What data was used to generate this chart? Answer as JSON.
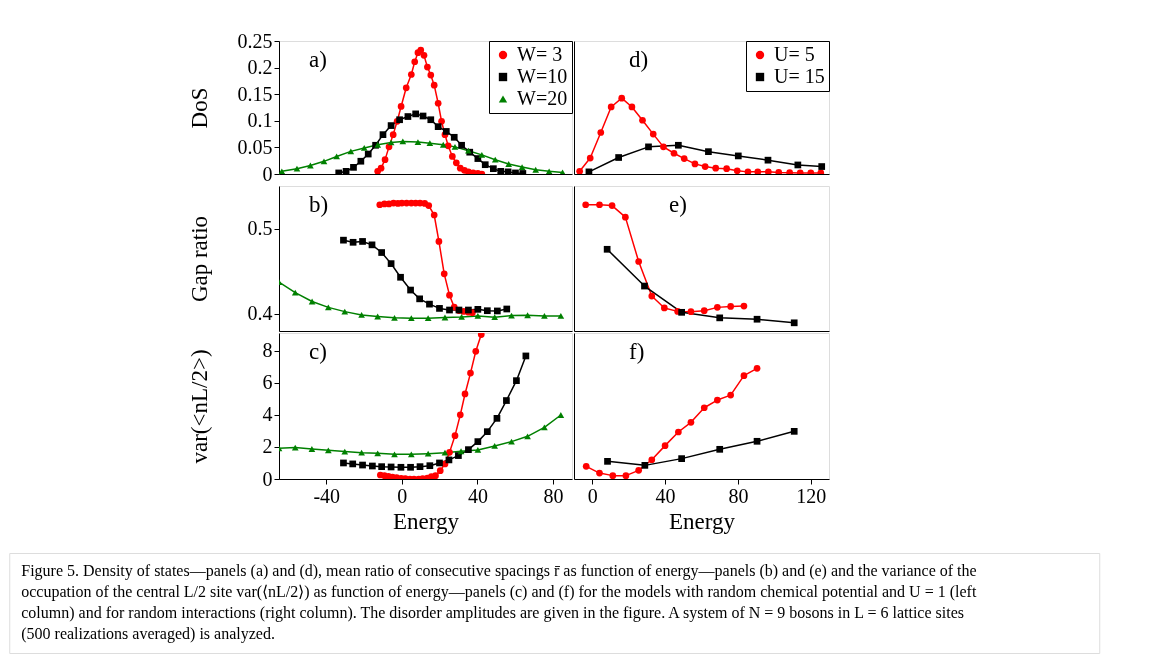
{
  "chart_data": [
    {
      "type": "line",
      "ylabel": "DoS",
      "annotations": [
        "a)"
      ],
      "xlim": [
        -65,
        90
      ],
      "ylim": [
        0,
        0.25
      ],
      "xticks": [
        -40,
        0,
        40,
        80
      ],
      "yticks": [
        0,
        0.05,
        0.1,
        0.15,
        0.2,
        0.25
      ],
      "tick_labels": "y",
      "legend": "top right",
      "series": [
        {
          "name": "W= 3",
          "color": "#ff0000",
          "marker": "circle",
          "x": [
            -12.8,
            -11.0,
            -8.9,
            -6.8,
            -4.6,
            -2.5,
            -0.4,
            2.3,
            5.0,
            6.8,
            8.5,
            10.0,
            11.7,
            13.5,
            15.3,
            17.1,
            19.2,
            21.0,
            22.8,
            24.5,
            26.7,
            28.8,
            30.9,
            33.1,
            35.2,
            37.7,
            40.2,
            42.3
          ],
          "values": [
            0.005,
            0.011,
            0.027,
            0.051,
            0.074,
            0.099,
            0.127,
            0.162,
            0.187,
            0.211,
            0.228,
            0.233,
            0.223,
            0.201,
            0.186,
            0.167,
            0.133,
            0.099,
            0.074,
            0.053,
            0.033,
            0.021,
            0.011,
            0.007,
            0.004,
            0.002,
            0.001,
            0
          ]
        },
        {
          "name": "W=10",
          "color": "#000000",
          "marker": "square",
          "x": [
            -33.4,
            -29.5,
            -25.6,
            -21.7,
            -17.8,
            -13.9,
            -10.0,
            -5.7,
            -1.2,
            3.2,
            7.3,
            11.2,
            15.3,
            19.2,
            23.5,
            27.7,
            31.6,
            35.9,
            40.2,
            44.1,
            48.4,
            52.3,
            56.2,
            60.1,
            64.0
          ],
          "values": [
            0.002,
            0.005,
            0.0125,
            0.024,
            0.0375,
            0.054,
            0.074,
            0.091,
            0.102,
            0.108,
            0.113,
            0.109,
            0.102,
            0.089,
            0.08,
            0.069,
            0.054,
            0.041,
            0.029,
            0.0175,
            0.01,
            0.005,
            0.004,
            0.002,
            0.001
          ]
        },
        {
          "name": "W=20",
          "color": "#008000",
          "marker": "triangle",
          "x": [
            -63.5,
            -55.5,
            -48.4,
            -41.2,
            -34.5,
            -27.0,
            -19.9,
            -12.8,
            -5.7,
            0.5,
            8.5,
            14.8,
            21.9,
            28.1,
            35.2,
            42.3,
            49.4,
            56.5,
            63.6,
            70.8,
            77.9,
            85.0
          ],
          "values": [
            0.005,
            0.01,
            0.016,
            0.0238,
            0.033,
            0.0425,
            0.049,
            0.055,
            0.0594,
            0.0613,
            0.06,
            0.058,
            0.055,
            0.051,
            0.0438,
            0.036,
            0.0269,
            0.0188,
            0.0131,
            0.008,
            0.005,
            0.003
          ]
        }
      ]
    },
    {
      "type": "line",
      "ylabel": "Gap ratio",
      "annotations": [
        "b)"
      ],
      "xlim": [
        -65,
        90
      ],
      "ylim": [
        0.38,
        0.55
      ],
      "xticks": [
        -40,
        0,
        40,
        80
      ],
      "yticks": [
        0.4,
        0.5
      ],
      "tick_labels": "y",
      "series": [
        {
          "color": "#ff0000",
          "marker": "circle",
          "x": [
            -11.7,
            -9.2,
            -6.8,
            -4.4,
            -2.1,
            0,
            2.5,
            5.0,
            7.3,
            9.6,
            12.1,
            14.2,
            17.1,
            19.6,
            22.4,
            25.2,
            27.7,
            30.2,
            32.7,
            35.2,
            37.3
          ],
          "values": [
            0.528,
            0.529,
            0.529,
            0.53,
            0.5296,
            0.53,
            0.53,
            0.53,
            0.53,
            0.53,
            0.5296,
            0.527,
            0.516,
            0.485,
            0.447,
            0.422,
            0.408,
            0.404,
            0.403,
            0.402,
            0.4015
          ]
        },
        {
          "color": "#000000",
          "marker": "square",
          "x": [
            -30.9,
            -25.8,
            -20.8,
            -15.8,
            -10.7,
            -5.7,
            -0.7,
            4.6,
            9.4,
            14.6,
            19.9,
            25.2,
            30.2,
            35.2,
            40.2,
            45.2,
            50.5,
            55.5
          ],
          "values": [
            0.4865,
            0.484,
            0.485,
            0.481,
            0.472,
            0.459,
            0.443,
            0.428,
            0.4177,
            0.4115,
            0.4065,
            0.4046,
            0.4046,
            0.4046,
            0.4054,
            0.4038,
            0.4035,
            0.4058
          ]
        },
        {
          "color": "#008000",
          "marker": "triangle",
          "x": [
            -65,
            -56.4,
            -47.5,
            -38.9,
            -30.2,
            -21.3,
            -12.8,
            -3.9,
            5.0,
            13.9,
            22.8,
            31.6,
            40.2,
            49.1,
            58.0,
            66.5,
            75.4,
            84.1
          ],
          "values": [
            0.4373,
            0.425,
            0.4146,
            0.4077,
            0.4027,
            0.3988,
            0.397,
            0.3954,
            0.395,
            0.395,
            0.3958,
            0.3965,
            0.3977,
            0.3962,
            0.3981,
            0.3985,
            0.3977,
            0.3977
          ]
        }
      ]
    },
    {
      "type": "line",
      "xlabel": "Energy",
      "ylabel": "var(<nL/2>)",
      "annotations": [
        "c)"
      ],
      "xlim": [
        -65,
        90
      ],
      "ylim": [
        0,
        9.1
      ],
      "xticks": [
        -40,
        0,
        40,
        80
      ],
      "yticks": [
        0,
        2,
        4,
        6,
        8
      ],
      "series": [
        {
          "color": "#ff0000",
          "marker": "circle",
          "x": [
            -11.4,
            -9.2,
            -7.1,
            -5.0,
            -2.8,
            -0.4,
            1.8,
            4.3,
            6.4,
            8.9,
            11.0,
            13.5,
            15.6,
            17.8,
            20.3,
            22.8,
            25.2,
            28.1,
            30.9,
            33.4,
            36.3,
            39.1,
            42.0
          ],
          "values": [
            0.25,
            0.21,
            0.17,
            0.12,
            0.08,
            0.04,
            0.02,
            0,
            0,
            0,
            0.02,
            0.06,
            0.15,
            0.21,
            0.52,
            0.94,
            1.66,
            2.7,
            4.0,
            5.3,
            6.6,
            7.96,
            9.0
          ]
        },
        {
          "color": "#000000",
          "marker": "square",
          "x": [
            -30.9,
            -26.0,
            -20.8,
            -15.6,
            -10.7,
            -5.7,
            -0.5,
            4.6,
            9.6,
            14.8,
            19.9,
            24.9,
            29.9,
            35.2,
            40.2,
            45.2,
            50.3,
            55.3,
            60.6,
            65.6
          ],
          "values": [
            1.0,
            0.94,
            0.87,
            0.81,
            0.77,
            0.75,
            0.73,
            0.73,
            0.77,
            0.83,
            1.0,
            1.19,
            1.46,
            1.83,
            2.33,
            2.95,
            3.78,
            4.89,
            6.13,
            7.67
          ]
        },
        {
          "color": "#008000",
          "marker": "triangle",
          "x": [
            -65,
            -56.4,
            -47.6,
            -38.9,
            -30.2,
            -21.3,
            -12.8,
            -3.9,
            5.0,
            13.9,
            22.8,
            31.3,
            40.2,
            49.1,
            58.0,
            66.5,
            75.4,
            84.1
          ],
          "values": [
            1.91,
            1.96,
            1.87,
            1.79,
            1.71,
            1.64,
            1.6,
            1.54,
            1.54,
            1.58,
            1.64,
            1.73,
            1.81,
            2.06,
            2.33,
            2.66,
            3.22,
            3.99
          ]
        }
      ]
    },
    {
      "type": "line",
      "annotations": [
        "d)"
      ],
      "xlim": [
        -10,
        130
      ],
      "ylim": [
        0,
        0.25
      ],
      "xticks": [
        0,
        40,
        80,
        120
      ],
      "yticks": [
        0,
        0.05,
        0.1,
        0.15,
        0.2,
        0.25
      ],
      "tick_labels": false,
      "legend": "top right",
      "series": [
        {
          "name": "U= 5",
          "color": "#ff0000",
          "marker": "circle",
          "x": [
            -6.9,
            -1.1,
            4.7,
            10.4,
            16.2,
            21.8,
            27.6,
            33.5,
            39.1,
            44.9,
            50.5,
            56.4,
            62.0,
            67.8,
            73.8,
            79.6,
            85.5,
            90.9,
            96.7,
            102.4,
            108.4,
            114.2,
            120.0,
            125.5
          ],
          "values": [
            0.005,
            0.03,
            0.078,
            0.126,
            0.1425,
            0.126,
            0.101,
            0.075,
            0.051,
            0.039,
            0.029,
            0.019,
            0.014,
            0.011,
            0.01,
            0.006,
            0.004,
            0.004,
            0.004,
            0.003,
            0.0025,
            0.002,
            0.002,
            0.002
          ]
        },
        {
          "name": "U= 15",
          "color": "#000000",
          "marker": "square",
          "x": [
            -1.8,
            14.5,
            30.9,
            47.3,
            63.8,
            80.2,
            96.5,
            112.9,
            126.0
          ],
          "values": [
            0.004,
            0.031,
            0.051,
            0.054,
            0.042,
            0.034,
            0.026,
            0.017,
            0.014
          ]
        }
      ]
    },
    {
      "type": "line",
      "annotations": [
        "e)"
      ],
      "xlim": [
        -10,
        130
      ],
      "ylim": [
        0.38,
        0.55
      ],
      "xticks": [
        0,
        40,
        80,
        120
      ],
      "yticks": [
        0.4,
        0.5
      ],
      "tick_labels": false,
      "series": [
        {
          "color": "#ff0000",
          "marker": "circle",
          "x": [
            -3.6,
            4.0,
            10.9,
            18.2,
            25.5,
            32.7,
            39.6,
            46.9,
            54.2,
            61.5,
            68.7,
            76.0,
            83.3
          ],
          "values": [
            0.528,
            0.528,
            0.527,
            0.5135,
            0.4615,
            0.421,
            0.407,
            0.403,
            0.4027,
            0.4038,
            0.4077,
            0.4088,
            0.4092
          ]
        },
        {
          "color": "#000000",
          "marker": "square",
          "x": [
            8.2,
            28.7,
            49.1,
            70.0,
            90.5,
            110.9
          ],
          "values": [
            0.4758,
            0.4327,
            0.4019,
            0.3954,
            0.3938,
            0.3896
          ]
        }
      ]
    },
    {
      "type": "line",
      "xlabel": "Energy",
      "annotations": [
        "f)",
        "Figure 5. Density of states—panels (a) and (d), mean ratio of consecutive spacings r̄ as function of energy—panels (b) and (e) and the variance of the occupation of the central L/2 site var(⟨nL/2⟩) as function of energy—panels (c) and (f) for the models with random chemical potential and U = 1 (left column) and for random interactions (right column). The disorder amplitudes are given in the figure. A system of N = 9 bosons in L = 6 lattice sites (500 realizations averaged) is analyzed."
      ],
      "xlim": [
        -10,
        130
      ],
      "ylim": [
        0,
        9.1
      ],
      "xticks": [
        0,
        40,
        80,
        120
      ],
      "yticks": [
        0,
        2,
        4,
        6,
        8
      ],
      "tick_labels": "x",
      "series": [
        {
          "color": "#ff0000",
          "marker": "circle",
          "x": [
            -3.3,
            4.0,
            11.3,
            18.5,
            25.5,
            32.7,
            40.0,
            47.3,
            54.2,
            61.5,
            68.7,
            76.0,
            83.3,
            90.5
          ],
          "values": [
            0.79,
            0.37,
            0.21,
            0.21,
            0.54,
            1.2,
            2.08,
            2.93,
            3.53,
            4.44,
            4.92,
            5.23,
            6.44,
            6.9
          ]
        },
        {
          "color": "#000000",
          "marker": "square",
          "x": [
            8.4,
            28.9,
            49.1,
            70.0,
            90.5,
            110.9
          ],
          "values": [
            1.1,
            0.85,
            1.27,
            1.85,
            2.35,
            2.97
          ]
        }
      ]
    }
  ]
}
